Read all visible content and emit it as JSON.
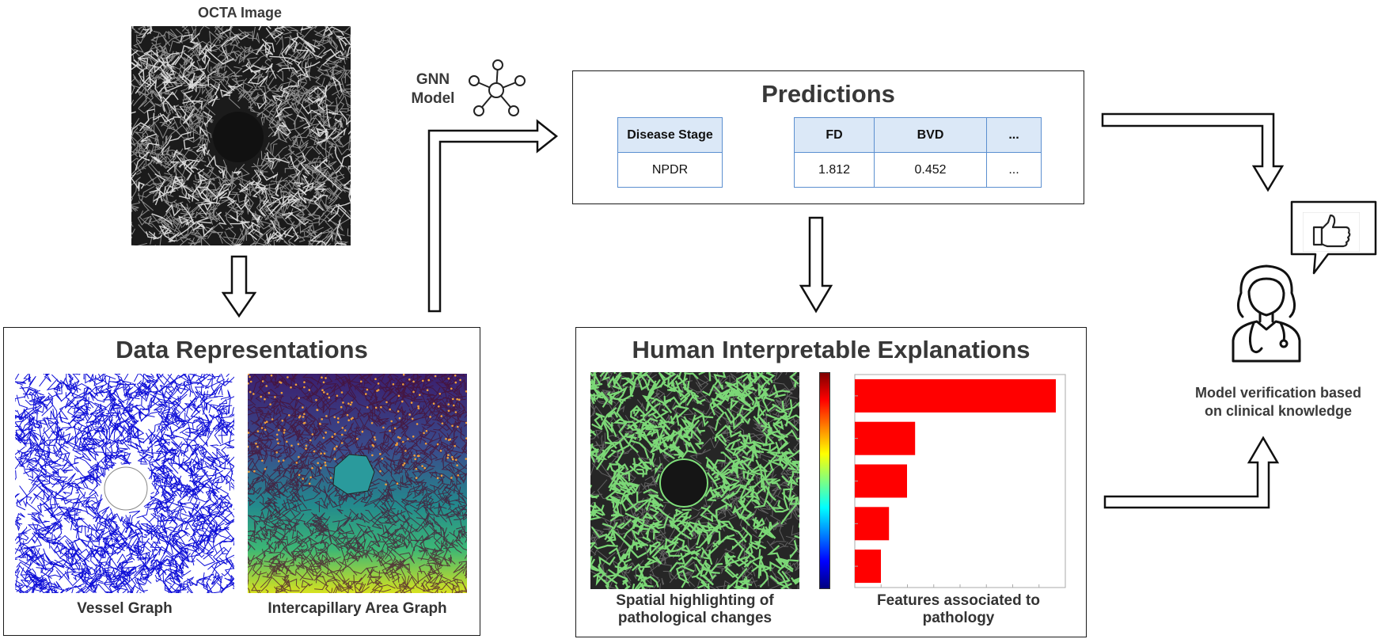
{
  "octa": {
    "title": "OCTA Image"
  },
  "gnn": {
    "label_line1": "GNN",
    "label_line2": "Model",
    "icon": "network-graph-icon"
  },
  "predictions": {
    "title": "Predictions",
    "stage_table": {
      "header": "Disease Stage",
      "value": "NPDR"
    },
    "metrics_table": {
      "headers": [
        "FD",
        "BVD",
        "..."
      ],
      "values": [
        "1.812",
        "0.452",
        "..."
      ]
    }
  },
  "data_representations": {
    "title": "Data Representations",
    "vessel_caption": "Vessel Graph",
    "intercapillary_caption": "Intercapillary Area Graph"
  },
  "explanations": {
    "title": "Human Interpretable Explanations",
    "spatial_caption_line1": "Spatial highlighting of",
    "spatial_caption_line2": "pathological changes",
    "features_caption_line1": "Features associated to",
    "features_caption_line2": "pathology",
    "feature_importance": [
      1.0,
      0.3,
      0.26,
      0.17,
      0.13
    ]
  },
  "verification": {
    "line1": "Model verification based",
    "line2": "on clinical knowledge",
    "icons": [
      "doctor-icon",
      "thumbs-up-icon",
      "speech-bubble-icon"
    ]
  },
  "colors": {
    "table_border": "#5b8fd0",
    "table_header": "#dbe8f7",
    "vessel_blue": "#1010d8",
    "bar_red": "#ff0000",
    "vessel_green": "#7fe07a"
  }
}
